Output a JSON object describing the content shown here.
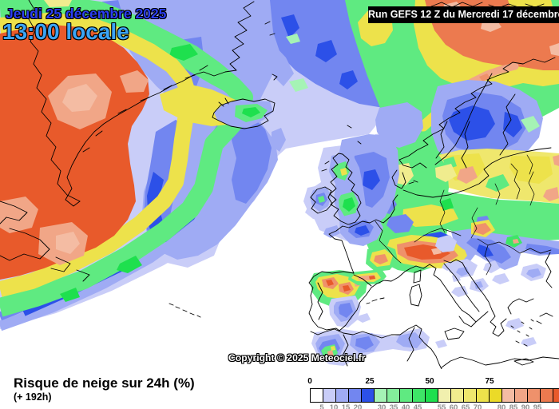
{
  "header": {
    "date_line1": "Jeudi 25 décembre 2025",
    "date_line2": "13:00 locale",
    "run_label": "Run GEFS 12 Z du Mercredi 17 décembre"
  },
  "map": {
    "copyright": "Copyright © 2025 Meteociel.fr"
  },
  "footer": {
    "title": "Risque de neige sur 24h (%)",
    "subtitle": "(+ 192h)"
  },
  "legend": {
    "unit": "%",
    "colors": [
      "#ffffff",
      "#c9cdf8",
      "#9fabf4",
      "#7286f0",
      "#2c50e8",
      "#a5f3b5",
      "#83ee9b",
      "#5fea81",
      "#3ee567",
      "#1ee04e",
      "#f1f0ae",
      "#f0ec8e",
      "#efe76d",
      "#ede24b",
      "#ebda28",
      "#f4bca3",
      "#f1a687",
      "#ef916b",
      "#ec7a4f",
      "#e85a2b"
    ],
    "top_ticks": [
      {
        "label": "0",
        "boundary": 0
      },
      {
        "label": "25",
        "boundary": 5
      },
      {
        "label": "50",
        "boundary": 10
      },
      {
        "label": "75",
        "boundary": 15
      }
    ],
    "bottom_ticks": [
      {
        "label": "5",
        "boundary": 1
      },
      {
        "label": "10",
        "boundary": 2
      },
      {
        "label": "15",
        "boundary": 3
      },
      {
        "label": "20",
        "boundary": 4
      },
      {
        "label": "30",
        "boundary": 6
      },
      {
        "label": "35",
        "boundary": 7
      },
      {
        "label": "40",
        "boundary": 8
      },
      {
        "label": "45",
        "boundary": 9
      },
      {
        "label": "55",
        "boundary": 11
      },
      {
        "label": "60",
        "boundary": 12
      },
      {
        "label": "65",
        "boundary": 13
      },
      {
        "label": "70",
        "boundary": 14
      },
      {
        "label": "80",
        "boundary": 16
      },
      {
        "label": "85",
        "boundary": 17
      },
      {
        "label": "90",
        "boundary": 18
      },
      {
        "label": "95",
        "boundary": 19
      }
    ]
  }
}
